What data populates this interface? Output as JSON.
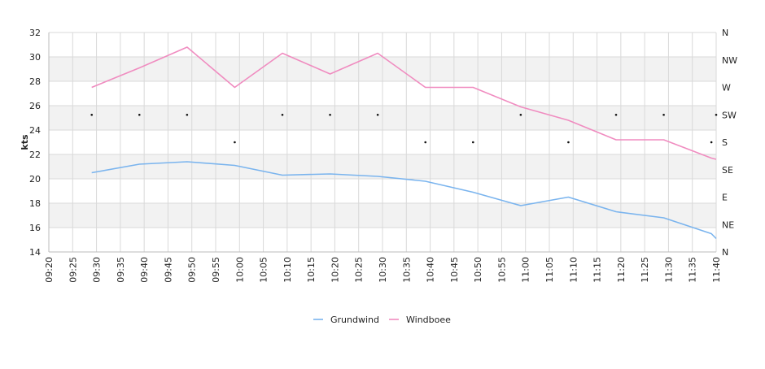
{
  "chart_data": {
    "type": "line",
    "x_ticks": [
      "09:20",
      "09:25",
      "09:30",
      "09:35",
      "09:40",
      "09:45",
      "09:50",
      "09:55",
      "10:00",
      "10:05",
      "10:10",
      "10:15",
      "10:20",
      "10:25",
      "10:30",
      "10:35",
      "10:40",
      "10:45",
      "10:50",
      "10:55",
      "11:00",
      "11:05",
      "11:10",
      "11:15",
      "11:20",
      "11:25",
      "11:30",
      "11:35",
      "11:40"
    ],
    "x": [
      "09:29",
      "09:39",
      "09:49",
      "09:59",
      "10:09",
      "10:19",
      "10:29",
      "10:39",
      "10:49",
      "10:59",
      "11:09",
      "11:19",
      "11:29",
      "11:39",
      "11:40"
    ],
    "series": [
      {
        "name": "Grundwind",
        "color": "#7ab4ee",
        "values": [
          20.5,
          21.2,
          21.4,
          21.1,
          20.3,
          20.4,
          20.2,
          19.8,
          18.9,
          17.8,
          18.5,
          17.3,
          16.8,
          15.5,
          15.1
        ]
      },
      {
        "name": "Windboee",
        "color": "#f08cc0",
        "values": [
          27.5,
          29.1,
          30.8,
          27.5,
          30.3,
          28.6,
          30.3,
          27.5,
          27.5,
          25.9,
          24.8,
          23.2,
          23.2,
          21.7,
          21.6
        ]
      }
    ],
    "direction_markers": {
      "times": [
        "09:29",
        "09:39",
        "09:49",
        "09:59",
        "10:09",
        "10:19",
        "10:29",
        "10:39",
        "10:49",
        "10:59",
        "11:09",
        "11:19",
        "11:29",
        "11:39",
        "11:40"
      ],
      "directions": [
        "SW",
        "SW",
        "SW",
        "S",
        "SW",
        "SW",
        "SW",
        "S",
        "S",
        "SW",
        "S",
        "SW",
        "SW",
        "S",
        "SW"
      ]
    },
    "y_label": "kts",
    "y_range": [
      14,
      32
    ],
    "y_ticks": [
      "14",
      "16",
      "18",
      "20",
      "22",
      "24",
      "26",
      "28",
      "30",
      "32"
    ],
    "y2_ticks": [
      "N",
      "NE",
      "E",
      "SE",
      "S",
      "SW",
      "W",
      "NW",
      "N"
    ],
    "band_color": "#f2f2f2",
    "grid": true,
    "legend_position": "bottom-center",
    "legend": [
      "Grundwind",
      "Windboee"
    ]
  }
}
